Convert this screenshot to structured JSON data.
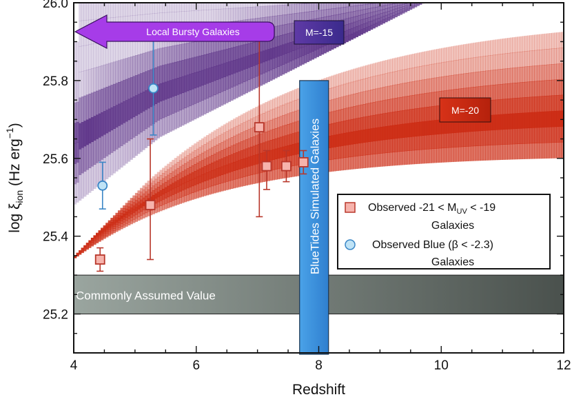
{
  "chart_data": {
    "type": "scatter",
    "xlabel": "Redshift",
    "ylabel": "log ξ",
    "ylabel_sub": "ion",
    "ylabel_units": " (Hz erg",
    "ylabel_sup": "−1",
    "ylabel_close": ")",
    "xlim": [
      4,
      12
    ],
    "ylim": [
      25.1,
      26.0
    ],
    "xticks": [
      4,
      6,
      8,
      10,
      12
    ],
    "yticks": [
      25.2,
      25.4,
      25.6,
      25.8,
      26.0
    ],
    "ytick_labels": [
      "25.2",
      "25.4",
      "25.6",
      "25.8",
      "26.0"
    ],
    "grid": false,
    "legend_position": "lower-right",
    "series": [
      {
        "name": "Observed -21 < M_UV < -19 Galaxies",
        "legend_line1": "Observed -21 < M",
        "legend_sub": "UV",
        "legend_after": " < -19",
        "legend_line2": "Galaxies",
        "marker": "square",
        "fill": "#f6b3ac",
        "edge": "#b8362a",
        "points": [
          {
            "x": 4.43,
            "y": 25.34,
            "yerr_low": 25.31,
            "yerr_high": 25.37
          },
          {
            "x": 5.25,
            "y": 25.48,
            "yerr_low": 25.34,
            "yerr_high": 25.65
          },
          {
            "x": 7.03,
            "y": 25.68,
            "yerr_low": 25.45,
            "yerr_high": 25.93
          },
          {
            "x": 7.15,
            "y": 25.58,
            "yerr_low": 25.52,
            "yerr_high": 25.62
          },
          {
            "x": 7.47,
            "y": 25.58,
            "yerr_low": 25.54,
            "yerr_high": 25.62
          },
          {
            "x": 7.75,
            "y": 25.59,
            "yerr_low": 25.56,
            "yerr_high": 25.62
          }
        ]
      },
      {
        "name": "Observed Blue (β < -2.3) Galaxies",
        "legend_line1": "Observed Blue (β < -2.3)",
        "legend_line2": "Galaxies",
        "marker": "circle",
        "fill": "#bfe3f6",
        "edge": "#3a86c6",
        "points": [
          {
            "x": 4.47,
            "y": 25.53,
            "yerr_low": 25.47,
            "yerr_high": 25.59
          },
          {
            "x": 5.3,
            "y": 25.78,
            "yerr_low": 25.66,
            "yerr_high": 25.95
          }
        ]
      }
    ],
    "bands": [
      {
        "label": "M=-15",
        "color": "#6a3d96"
      },
      {
        "label": "M=-20",
        "color": "#c52410"
      }
    ],
    "annotations": {
      "local_bursty": "Local Bursty Galaxies",
      "commonly_assumed": "Commonly Assumed Value",
      "commonly_assumed_range": [
        25.2,
        25.3
      ],
      "bluetides": "BlueTides Simulated Galaxies",
      "bluetides_x_range": [
        7.8,
        8.25
      ],
      "bluetides_y_top": 25.8
    },
    "colors": {
      "purple_band": "#5c3287",
      "red_band": "#cc2a12",
      "assumed_band": "#7e8a85",
      "bluetides_bar": "#3a8fdc",
      "arrow": "#a63ce8"
    }
  }
}
